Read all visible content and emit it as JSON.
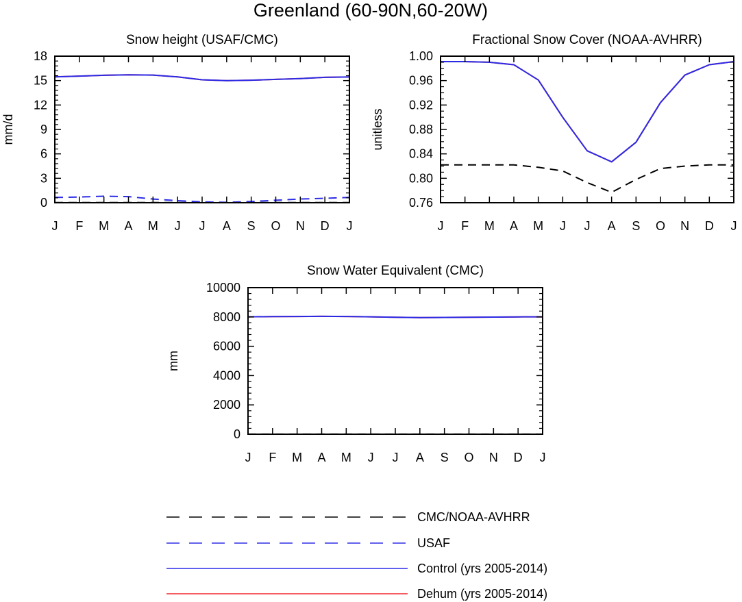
{
  "title": "Greenland (60-90N,60-20W)",
  "colors": {
    "obs": "#000000",
    "usaf": "#2b2be6",
    "control": "#2b2be6",
    "dehum": "#f0282d"
  },
  "chart_data": [
    {
      "type": "line",
      "title": "Snow height (USAF/CMC)",
      "xlabel": "",
      "ylabel": "mm/d",
      "categories": [
        "J",
        "F",
        "M",
        "A",
        "M",
        "J",
        "J",
        "A",
        "S",
        "O",
        "N",
        "D",
        "J"
      ],
      "ylim": [
        0,
        18
      ],
      "yticks": [
        0,
        3,
        6,
        9,
        12,
        15,
        18
      ],
      "ytick_labels": [
        "0",
        "3",
        "6",
        "9",
        "12",
        "15",
        "18"
      ],
      "series": [
        {
          "name": "CMC/NOAA-AVHRR",
          "style": "dash",
          "color_key": "obs",
          "values": [
            0.02,
            0.02,
            0.02,
            0.02,
            0.02,
            0.02,
            0.02,
            0.02,
            0.02,
            0.02,
            0.02,
            0.02,
            0.02
          ]
        },
        {
          "name": "USAF",
          "style": "dash",
          "color_key": "usaf",
          "values": [
            0.65,
            0.7,
            0.8,
            0.75,
            0.45,
            0.25,
            0.1,
            0.05,
            0.15,
            0.3,
            0.45,
            0.55,
            0.65
          ]
        },
        {
          "name": "Dehum (yrs 2005-2014)",
          "style": "solid",
          "color_key": "dehum",
          "values": [
            15.45,
            15.55,
            15.65,
            15.7,
            15.68,
            15.45,
            15.1,
            15.0,
            15.05,
            15.15,
            15.25,
            15.4,
            15.45
          ]
        },
        {
          "name": "Control (yrs 2005-2014)",
          "style": "solid",
          "color_key": "control",
          "values": [
            15.45,
            15.55,
            15.65,
            15.7,
            15.68,
            15.45,
            15.1,
            15.0,
            15.05,
            15.15,
            15.25,
            15.4,
            15.45
          ]
        }
      ]
    },
    {
      "type": "line",
      "title": "Fractional Snow Cover (NOAA-AVHRR)",
      "xlabel": "",
      "ylabel": "unitless",
      "categories": [
        "J",
        "F",
        "M",
        "A",
        "M",
        "J",
        "J",
        "A",
        "S",
        "O",
        "N",
        "D",
        "J"
      ],
      "ylim": [
        0.76,
        1.0
      ],
      "yticks": [
        0.76,
        0.8,
        0.84,
        0.88,
        0.92,
        0.96,
        1.0
      ],
      "ytick_labels": [
        "0.76",
        "0.80",
        "0.84",
        "0.88",
        "0.92",
        "0.96",
        "1.00"
      ],
      "series": [
        {
          "name": "CMC/NOAA-AVHRR",
          "style": "dash",
          "color_key": "obs",
          "values": [
            0.822,
            0.822,
            0.822,
            0.822,
            0.818,
            0.812,
            0.793,
            0.777,
            0.798,
            0.816,
            0.82,
            0.822,
            0.822
          ]
        },
        {
          "name": "Dehum (yrs 2005-2014)",
          "style": "solid",
          "color_key": "dehum",
          "values": [
            0.991,
            0.991,
            0.99,
            0.986,
            0.961,
            0.9,
            0.845,
            0.827,
            0.859,
            0.924,
            0.969,
            0.986,
            0.991
          ]
        },
        {
          "name": "Control (yrs 2005-2014)",
          "style": "solid",
          "color_key": "control",
          "values": [
            0.991,
            0.991,
            0.99,
            0.986,
            0.961,
            0.9,
            0.845,
            0.827,
            0.859,
            0.924,
            0.969,
            0.986,
            0.991
          ]
        }
      ]
    },
    {
      "type": "line",
      "title": "Snow Water Equivalent (CMC)",
      "xlabel": "",
      "ylabel": "mm",
      "categories": [
        "J",
        "F",
        "M",
        "A",
        "M",
        "J",
        "J",
        "A",
        "S",
        "O",
        "N",
        "D",
        "J"
      ],
      "ylim": [
        0,
        10000
      ],
      "yticks": [
        0,
        2000,
        4000,
        6000,
        8000,
        10000
      ],
      "ytick_labels": [
        "0",
        "2000",
        "4000",
        "6000",
        "8000",
        "10000"
      ],
      "series": [
        {
          "name": "CMC/NOAA-AVHRR",
          "style": "dash",
          "color_key": "obs",
          "values": [
            5,
            5,
            5,
            5,
            5,
            5,
            5,
            5,
            5,
            5,
            5,
            5,
            5
          ]
        },
        {
          "name": "Dehum (yrs 2005-2014)",
          "style": "solid",
          "color_key": "dehum",
          "values": [
            8010,
            8025,
            8035,
            8040,
            8035,
            8010,
            7975,
            7960,
            7965,
            7975,
            7990,
            8005,
            8010
          ]
        },
        {
          "name": "Control (yrs 2005-2014)",
          "style": "solid",
          "color_key": "control",
          "values": [
            8010,
            8025,
            8035,
            8040,
            8035,
            8010,
            7975,
            7960,
            7965,
            7975,
            7990,
            8005,
            8010
          ]
        }
      ]
    }
  ],
  "legend": [
    {
      "label": "CMC/NOAA-AVHRR",
      "style": "dash",
      "color_key": "obs"
    },
    {
      "label": "USAF",
      "style": "dash",
      "color_key": "usaf"
    },
    {
      "label": "Control (yrs 2005-2014)",
      "style": "solid",
      "color_key": "control"
    },
    {
      "label": "Dehum (yrs 2005-2014)",
      "style": "solid",
      "color_key": "dehum"
    }
  ]
}
